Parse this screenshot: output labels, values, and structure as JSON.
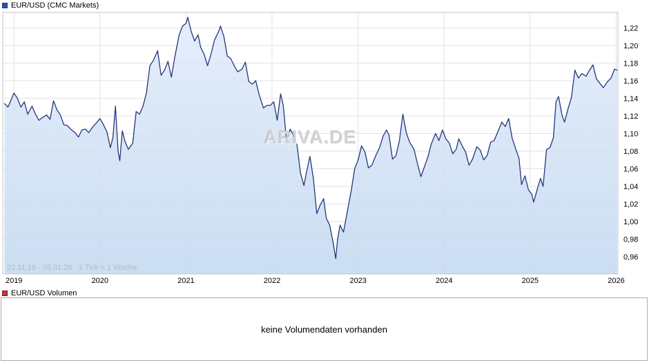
{
  "header": {
    "title": "EUR/USD (CMC Markets)"
  },
  "volume": {
    "title": "EUR/USD Volumen",
    "empty_message": "keine Volumendaten vorhanden"
  },
  "range_info": "22.11.18 - 05.01.26   1 Tick = 1 Woche",
  "watermark": "ARIVA.DE",
  "colors": {
    "line": "#24357b",
    "area_top": "#e1ebfa",
    "area_bottom": "#c2d8f0",
    "grid": "#e2e2e2",
    "border": "#c6c6c6",
    "header_icon_blue": "#2a52c0",
    "volume_icon_red": "#cc3333",
    "range_text": "#b8b8b8",
    "axis_text": "#000000"
  },
  "chart_data": {
    "type": "line",
    "title": "EUR/USD (CMC Markets)",
    "date_range": "22.11.18 - 05.01.26",
    "tick_note": "1 Tick = 1 Woche",
    "grid": true,
    "legend_position": "none",
    "xlabel": "",
    "ylabel": "",
    "xlim": [
      2018.87,
      2026.02
    ],
    "ylim": [
      0.9405,
      1.2375
    ],
    "x_ticks": [
      {
        "label": "2019",
        "v": 2019
      },
      {
        "label": "2020",
        "v": 2020
      },
      {
        "label": "2021",
        "v": 2021
      },
      {
        "label": "2022",
        "v": 2022
      },
      {
        "label": "2023",
        "v": 2023
      },
      {
        "label": "2024",
        "v": 2024
      },
      {
        "label": "2025",
        "v": 2025
      },
      {
        "label": "2026",
        "v": 2026
      }
    ],
    "y_ticks": [
      {
        "label": "1,22",
        "v": 1.22
      },
      {
        "label": "1,20",
        "v": 1.2
      },
      {
        "label": "1,18",
        "v": 1.18
      },
      {
        "label": "1,16",
        "v": 1.16
      },
      {
        "label": "1,14",
        "v": 1.14
      },
      {
        "label": "1,12",
        "v": 1.12
      },
      {
        "label": "1,10",
        "v": 1.1
      },
      {
        "label": "1,08",
        "v": 1.08
      },
      {
        "label": "1,06",
        "v": 1.06
      },
      {
        "label": "1,04",
        "v": 1.04
      },
      {
        "label": "1,02",
        "v": 1.02
      },
      {
        "label": "1,00",
        "v": 1.0
      },
      {
        "label": "0,98",
        "v": 0.98
      },
      {
        "label": "0,96",
        "v": 0.96
      }
    ],
    "series": [
      {
        "name": "EUR/USD",
        "x": [
          2018.89,
          2018.93,
          2018.97,
          2019.0,
          2019.04,
          2019.08,
          2019.12,
          2019.16,
          2019.21,
          2019.25,
          2019.29,
          2019.33,
          2019.38,
          2019.42,
          2019.46,
          2019.5,
          2019.54,
          2019.58,
          2019.62,
          2019.67,
          2019.71,
          2019.75,
          2019.79,
          2019.83,
          2019.87,
          2019.92,
          2019.96,
          2020.0,
          2020.04,
          2020.08,
          2020.12,
          2020.15,
          2020.18,
          2020.21,
          2020.23,
          2020.26,
          2020.29,
          2020.33,
          2020.38,
          2020.42,
          2020.46,
          2020.5,
          2020.54,
          2020.58,
          2020.62,
          2020.67,
          2020.71,
          2020.75,
          2020.79,
          2020.83,
          2020.87,
          2020.92,
          2020.96,
          2021.0,
          2021.02,
          2021.06,
          2021.1,
          2021.14,
          2021.17,
          2021.21,
          2021.25,
          2021.29,
          2021.33,
          2021.38,
          2021.4,
          2021.44,
          2021.48,
          2021.52,
          2021.56,
          2021.6,
          2021.65,
          2021.69,
          2021.73,
          2021.77,
          2021.81,
          2021.85,
          2021.9,
          2021.94,
          2021.98,
          2022.02,
          2022.06,
          2022.1,
          2022.13,
          2022.17,
          2022.21,
          2022.25,
          2022.29,
          2022.33,
          2022.37,
          2022.4,
          2022.44,
          2022.48,
          2022.52,
          2022.56,
          2022.6,
          2022.63,
          2022.67,
          2022.71,
          2022.74,
          2022.76,
          2022.79,
          2022.83,
          2022.87,
          2022.92,
          2022.96,
          2023.0,
          2023.04,
          2023.08,
          2023.12,
          2023.16,
          2023.21,
          2023.25,
          2023.29,
          2023.33,
          2023.36,
          2023.4,
          2023.44,
          2023.48,
          2023.52,
          2023.56,
          2023.6,
          2023.65,
          2023.69,
          2023.73,
          2023.77,
          2023.81,
          2023.85,
          2023.9,
          2023.94,
          2023.98,
          2024.02,
          2024.06,
          2024.1,
          2024.14,
          2024.17,
          2024.21,
          2024.25,
          2024.29,
          2024.33,
          2024.38,
          2024.42,
          2024.46,
          2024.5,
          2024.54,
          2024.58,
          2024.62,
          2024.67,
          2024.71,
          2024.75,
          2024.79,
          2024.83,
          2024.87,
          2024.9,
          2024.94,
          2024.98,
          2025.02,
          2025.04,
          2025.08,
          2025.12,
          2025.15,
          2025.19,
          2025.23,
          2025.27,
          2025.3,
          2025.33,
          2025.37,
          2025.4,
          2025.44,
          2025.48,
          2025.52,
          2025.56,
          2025.6,
          2025.65,
          2025.69,
          2025.73,
          2025.77,
          2025.81,
          2025.85,
          2025.9,
          2025.94,
          2025.98,
          2026.01
        ],
        "y": [
          1.134,
          1.13,
          1.139,
          1.146,
          1.14,
          1.13,
          1.136,
          1.122,
          1.131,
          1.122,
          1.115,
          1.118,
          1.121,
          1.116,
          1.137,
          1.127,
          1.121,
          1.11,
          1.109,
          1.104,
          1.101,
          1.096,
          1.104,
          1.105,
          1.101,
          1.108,
          1.112,
          1.117,
          1.11,
          1.102,
          1.084,
          1.095,
          1.131,
          1.08,
          1.069,
          1.103,
          1.091,
          1.082,
          1.089,
          1.125,
          1.122,
          1.131,
          1.146,
          1.177,
          1.183,
          1.194,
          1.166,
          1.172,
          1.182,
          1.164,
          1.187,
          1.212,
          1.222,
          1.225,
          1.232,
          1.216,
          1.205,
          1.212,
          1.198,
          1.19,
          1.177,
          1.19,
          1.206,
          1.216,
          1.222,
          1.21,
          1.188,
          1.185,
          1.177,
          1.17,
          1.173,
          1.181,
          1.159,
          1.156,
          1.16,
          1.144,
          1.129,
          1.132,
          1.132,
          1.136,
          1.115,
          1.145,
          1.132,
          1.091,
          1.105,
          1.098,
          1.087,
          1.055,
          1.041,
          1.056,
          1.074,
          1.049,
          1.009,
          1.019,
          1.026,
          1.004,
          0.996,
          0.976,
          0.958,
          0.979,
          0.996,
          0.988,
          1.009,
          1.035,
          1.06,
          1.07,
          1.086,
          1.079,
          1.061,
          1.064,
          1.076,
          1.084,
          1.097,
          1.104,
          1.098,
          1.071,
          1.075,
          1.092,
          1.122,
          1.101,
          1.09,
          1.082,
          1.066,
          1.051,
          1.062,
          1.073,
          1.088,
          1.1,
          1.092,
          1.104,
          1.094,
          1.089,
          1.077,
          1.082,
          1.094,
          1.086,
          1.079,
          1.064,
          1.071,
          1.085,
          1.081,
          1.07,
          1.075,
          1.09,
          1.092,
          1.101,
          1.113,
          1.108,
          1.117,
          1.095,
          1.083,
          1.072,
          1.042,
          1.052,
          1.036,
          1.031,
          1.022,
          1.036,
          1.049,
          1.04,
          1.082,
          1.084,
          1.095,
          1.136,
          1.142,
          1.121,
          1.113,
          1.128,
          1.141,
          1.172,
          1.163,
          1.168,
          1.165,
          1.172,
          1.178,
          1.162,
          1.157,
          1.152,
          1.159,
          1.163,
          1.173,
          1.172
        ]
      }
    ]
  }
}
